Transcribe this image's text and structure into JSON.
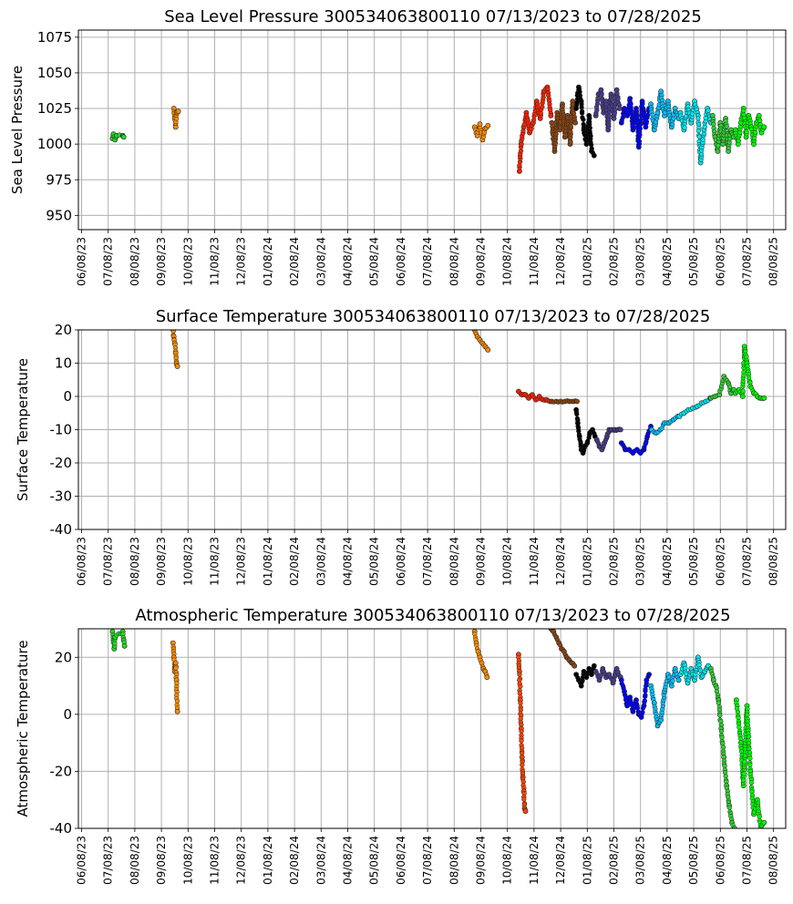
{
  "chart_data": [
    {
      "type": "scatter",
      "title": "Sea Level Pressure 300534063800110  07/13/2023 to 07/28/2025",
      "ylabel": "Sea Level Pressure",
      "xlabel": "",
      "ylim": [
        940,
        1080
      ],
      "yticks": [
        950,
        975,
        1000,
        1025,
        1050,
        1075
      ],
      "grid": true,
      "x_ticks": [
        "06/08/23",
        "07/08/23",
        "08/08/23",
        "09/08/23",
        "10/08/23",
        "11/08/23",
        "12/08/23",
        "01/08/24",
        "02/08/24",
        "03/08/24",
        "04/08/24",
        "05/08/24",
        "06/08/24",
        "07/08/24",
        "08/08/24",
        "09/08/24",
        "10/08/24",
        "11/08/24",
        "12/08/24",
        "01/08/25",
        "02/08/25",
        "03/08/25",
        "04/08/25",
        "05/08/25",
        "06/08/25",
        "07/08/25",
        "08/08/25"
      ],
      "series": [
        {
          "color": "#22dd22",
          "x": [
            "07/13/23",
            "07/14/23",
            "07/16/23",
            "07/18/23",
            "07/25/23",
            "07/26/23"
          ],
          "y": [
            1004,
            1007,
            1003,
            1006,
            1006,
            1005
          ]
        },
        {
          "color": "#ff8c00",
          "x": [
            "09/22/23",
            "09/23/23",
            "09/24/23",
            "09/25/23",
            "09/27/23"
          ],
          "y": [
            1025,
            1018,
            1012,
            1022,
            1023
          ]
        },
        {
          "color": "#ff8c00",
          "x": [
            "09/01/24",
            "09/04/24",
            "09/07/24",
            "09/10/24",
            "09/13/24",
            "09/16/24"
          ],
          "y": [
            1012,
            1006,
            1014,
            1003,
            1011,
            1013
          ]
        },
        {
          "color": "#ff2200",
          "x": [
            "10/22/24",
            "10/24/24",
            "10/27/24",
            "10/30/24",
            "11/03/24",
            "11/07/24",
            "11/11/24",
            "11/15/24",
            "11/19/24",
            "11/23/24",
            "11/27/24"
          ],
          "y": [
            981,
            1000,
            1012,
            1022,
            1008,
            1015,
            1030,
            1018,
            1037,
            1040,
            1020
          ]
        },
        {
          "color": "#8b4513",
          "x": [
            "11/28/24",
            "12/01/24",
            "12/04/24",
            "12/07/24",
            "12/10/24",
            "12/13/24",
            "12/16/24",
            "12/19/24",
            "12/22/24",
            "12/25/24"
          ],
          "y": [
            1015,
            995,
            1022,
            1010,
            1028,
            1005,
            1020,
            1000,
            1030,
            1015
          ]
        },
        {
          "color": "#000000",
          "x": [
            "12/26/24",
            "12/29/24",
            "01/01/25",
            "01/04/25",
            "01/07/25",
            "01/10/25",
            "01/13/25",
            "01/16/25"
          ],
          "y": [
            1025,
            1040,
            1030,
            1010,
            1000,
            1020,
            995,
            992
          ]
        },
        {
          "color": "#483d8b",
          "x": [
            "01/18/25",
            "01/21/25",
            "01/24/25",
            "01/27/25",
            "01/30/25",
            "02/02/25",
            "02/05/25",
            "02/08/25",
            "02/11/25",
            "02/14/25"
          ],
          "y": [
            1020,
            1035,
            1038,
            1022,
            1030,
            1010,
            1035,
            1018,
            1038,
            1025
          ]
        },
        {
          "color": "#0000ff",
          "x": [
            "02/16/25",
            "02/19/25",
            "02/22/25",
            "02/25/25",
            "02/28/25",
            "03/03/25",
            "03/06/25",
            "03/10/25",
            "03/14/25",
            "03/18/25"
          ],
          "y": [
            1015,
            1025,
            1020,
            1032,
            1010,
            1025,
            998,
            1030,
            1012,
            1025
          ]
        },
        {
          "color": "#00bfff",
          "x": [
            "03/20/25",
            "03/24/25",
            "03/28/25",
            "04/01/25",
            "04/05/25",
            "04/09/25",
            "04/13/25",
            "04/17/25",
            "04/21/25"
          ],
          "y": [
            1028,
            1010,
            1022,
            1037,
            1020,
            1030,
            1012,
            1025,
            1018
          ]
        },
        {
          "color": "#00e5ee",
          "x": [
            "04/23/25",
            "04/27/25",
            "05/01/25",
            "05/05/25",
            "05/09/25",
            "05/13/25",
            "05/16/25",
            "05/20/25",
            "05/24/25",
            "05/28/25"
          ],
          "y": [
            1022,
            1010,
            1028,
            1015,
            1030,
            1020,
            987,
            1010,
            1025,
            1015
          ]
        },
        {
          "color": "#32cd32",
          "x": [
            "05/30/25",
            "06/02/25",
            "06/05/25",
            "06/08/25",
            "06/11/25",
            "06/14/25",
            "06/17/25",
            "06/20/25",
            "06/23/25"
          ],
          "y": [
            1020,
            1005,
            995,
            1015,
            1000,
            1018,
            995,
            1010,
            1005
          ]
        },
        {
          "color": "#00ff00",
          "x": [
            "06/25/25",
            "06/28/25",
            "07/01/25",
            "07/04/25",
            "07/07/25",
            "07/10/25",
            "07/13/25",
            "07/16/25",
            "07/19/25",
            "07/22/25",
            "07/25/25",
            "07/28/25"
          ],
          "y": [
            1010,
            1000,
            1015,
            1025,
            1005,
            1020,
            1012,
            1000,
            1015,
            1020,
            1008,
            1012
          ]
        }
      ]
    },
    {
      "type": "scatter",
      "title": "Surface Temperature 300534063800110  07/13/2023 to 07/28/2025",
      "ylabel": "Surface Temperature",
      "xlabel": "",
      "ylim": [
        -40,
        20
      ],
      "yticks": [
        -40,
        -30,
        -20,
        -10,
        0,
        10,
        20
      ],
      "grid": true,
      "x_ticks": [
        "06/08/23",
        "07/08/23",
        "08/08/23",
        "09/08/23",
        "10/08/23",
        "11/08/23",
        "12/08/23",
        "01/08/24",
        "02/08/24",
        "03/08/24",
        "04/08/24",
        "05/08/24",
        "06/08/24",
        "07/08/24",
        "08/08/24",
        "09/08/24",
        "10/08/24",
        "11/08/24",
        "12/08/24",
        "01/08/25",
        "02/08/25",
        "03/08/25",
        "04/08/25",
        "05/08/25",
        "06/08/25",
        "07/08/25",
        "08/08/25"
      ],
      "series": [
        {
          "color": "#ff8c00",
          "x": [
            "09/21/23",
            "09/22/23",
            "09/23/23",
            "09/24/23",
            "09/25/23",
            "09/26/23"
          ],
          "y": [
            20,
            18,
            16,
            13,
            10,
            9
          ]
        },
        {
          "color": "#ff8c00",
          "x": [
            "09/01/24",
            "09/04/24",
            "09/07/24",
            "09/10/24",
            "09/13/24",
            "09/16/24"
          ],
          "y": [
            20,
            18,
            17,
            16,
            15,
            14
          ]
        },
        {
          "color": "#ff2200",
          "x": [
            "10/21/24",
            "10/25/24",
            "10/29/24",
            "11/02/24",
            "11/06/24",
            "11/10/24",
            "11/14/24",
            "11/18/24",
            "11/22/24",
            "11/26/24"
          ],
          "y": [
            1.5,
            0.5,
            0.5,
            -0.5,
            0.5,
            -1,
            0,
            -1,
            -1,
            -1.5
          ]
        },
        {
          "color": "#8b4513",
          "x": [
            "11/28/24",
            "12/03/24",
            "12/08/24",
            "12/13/24",
            "12/18/24",
            "12/23/24",
            "12/27/24"
          ],
          "y": [
            -1.5,
            -1.5,
            -1.5,
            -1.5,
            -1.5,
            -1.5,
            -1.5
          ]
        },
        {
          "color": "#000000",
          "x": [
            "12/26/24",
            "12/28/24",
            "12/30/24",
            "01/01/25",
            "01/03/25",
            "01/05/25",
            "01/08/25",
            "01/11/25",
            "01/14/25",
            "01/17/25"
          ],
          "y": [
            -4,
            -8,
            -12,
            -16,
            -17,
            -15,
            -14,
            -11,
            -10,
            -12
          ]
        },
        {
          "color": "#483d8b",
          "x": [
            "01/19/25",
            "01/22/25",
            "01/25/25",
            "01/28/25",
            "01/31/25",
            "02/03/25",
            "02/06/25",
            "02/09/25",
            "02/12/25",
            "02/15/25"
          ],
          "y": [
            -13,
            -15,
            -16,
            -14,
            -12,
            -10,
            -10,
            -10,
            -10,
            -10
          ]
        },
        {
          "color": "#0000ff",
          "x": [
            "02/16/25",
            "02/20/25",
            "02/24/25",
            "02/28/25",
            "03/04/25",
            "03/08/25",
            "03/12/25",
            "03/16/25",
            "03/20/25"
          ],
          "y": [
            -14,
            -16,
            -16,
            -17,
            -16,
            -17,
            -16,
            -12,
            -9
          ]
        },
        {
          "color": "#00bfff",
          "x": [
            "03/21/25",
            "03/26/25",
            "03/31/25",
            "04/05/25",
            "04/10/25",
            "04/15/25",
            "04/20/25"
          ],
          "y": [
            -10,
            -11,
            -10,
            -8,
            -8,
            -7,
            -6
          ]
        },
        {
          "color": "#00e5ee",
          "x": [
            "04/22/25",
            "04/27/25",
            "05/02/25",
            "05/07/25",
            "05/12/25",
            "05/17/25",
            "05/22/25",
            "05/27/25"
          ],
          "y": [
            -6,
            -5,
            -4,
            -3.5,
            -3,
            -2,
            -1.5,
            -0.5
          ]
        },
        {
          "color": "#32cd32",
          "x": [
            "05/28/25",
            "06/02/25",
            "06/07/25",
            "06/12/25",
            "06/17/25",
            "06/20/25",
            "06/23/25"
          ],
          "y": [
            -0.5,
            0,
            0.5,
            6,
            4,
            1,
            2
          ]
        },
        {
          "color": "#00ff00",
          "x": [
            "06/25/25",
            "06/29/25",
            "07/03/25",
            "07/05/25",
            "07/08/25",
            "07/12/25",
            "07/16/25",
            "07/20/25",
            "07/24/25",
            "07/28/25"
          ],
          "y": [
            1,
            2,
            0,
            15,
            10,
            3,
            1,
            0,
            -0.5,
            -0.5
          ]
        }
      ]
    },
    {
      "type": "scatter",
      "title": "Atmospheric Temperature 300534063800110  07/13/2023 to 07/28/2025",
      "ylabel": "Atmospheric Temperature",
      "xlabel": "",
      "ylim": [
        -40,
        30
      ],
      "yticks": [
        -40,
        -20,
        0,
        20
      ],
      "grid": true,
      "x_ticks": [
        "06/08/23",
        "07/08/23",
        "08/08/23",
        "09/08/23",
        "10/08/23",
        "11/08/23",
        "12/08/23",
        "01/08/24",
        "02/08/24",
        "03/08/24",
        "04/08/24",
        "05/08/24",
        "06/08/24",
        "07/08/24",
        "08/08/24",
        "09/08/24",
        "10/08/24",
        "11/08/24",
        "12/08/24",
        "01/08/25",
        "02/08/25",
        "03/08/25",
        "04/08/25",
        "05/08/25",
        "06/08/25",
        "07/08/25",
        "08/08/25"
      ],
      "series": [
        {
          "color": "#22dd22",
          "x": [
            "07/13/23",
            "07/14/23",
            "07/15/23",
            "07/16/23",
            "07/25/23",
            "07/26/23",
            "07/27/23"
          ],
          "y": [
            29,
            26,
            23,
            27,
            29,
            26,
            24
          ]
        },
        {
          "color": "#ff8c00",
          "x": [
            "09/21/23",
            "09/22/23",
            "09/23/23",
            "09/24/23",
            "09/25/23",
            "09/26/23"
          ],
          "y": [
            25,
            20,
            15,
            18,
            12,
            1
          ]
        },
        {
          "color": "#ff8c00",
          "x": [
            "09/01/24",
            "09/03/24",
            "09/05/24",
            "09/07/24",
            "09/09/24",
            "09/11/24",
            "09/13/24",
            "09/15/24"
          ],
          "y": [
            29,
            25,
            22,
            20,
            18,
            16,
            15,
            13
          ]
        },
        {
          "color": "#ff4500",
          "x": [
            "10/21/24",
            "10/22/24",
            "10/23/24",
            "10/24/24",
            "10/25/24",
            "10/26/24",
            "10/27/24",
            "10/28/24",
            "10/29/24"
          ],
          "y": [
            21,
            15,
            5,
            -5,
            -15,
            -22,
            -27,
            -33,
            -34
          ]
        },
        {
          "color": "#8b4513",
          "x": [
            "11/27/24",
            "11/30/24",
            "12/03/24",
            "12/06/24",
            "12/09/24",
            "12/12/24",
            "12/15/24",
            "12/18/24",
            "12/21/24",
            "12/24/24"
          ],
          "y": [
            30,
            29,
            27,
            25,
            23,
            22,
            20,
            19,
            18,
            17
          ]
        },
        {
          "color": "#000000",
          "x": [
            "12/26/24",
            "12/29/24",
            "01/01/25",
            "01/04/25",
            "01/07/25",
            "01/10/25",
            "01/13/25",
            "01/16/25"
          ],
          "y": [
            14,
            12,
            10,
            15,
            13,
            16,
            14,
            17
          ]
        },
        {
          "color": "#483d8b",
          "x": [
            "01/18/25",
            "01/22/25",
            "01/26/25",
            "01/30/25",
            "02/03/25",
            "02/07/25",
            "02/11/25",
            "02/15/25"
          ],
          "y": [
            15,
            12,
            16,
            13,
            14,
            11,
            16,
            13
          ]
        },
        {
          "color": "#0000ff",
          "x": [
            "02/16/25",
            "02/19/25",
            "02/22/25",
            "02/25/25",
            "02/28/25",
            "03/03/25",
            "03/06/25",
            "03/09/25",
            "03/12/25",
            "03/15/25",
            "03/18/25"
          ],
          "y": [
            12,
            8,
            3,
            6,
            1,
            5,
            0,
            -1,
            3,
            12,
            14
          ]
        },
        {
          "color": "#00bfff",
          "x": [
            "03/20/25",
            "03/24/25",
            "03/28/25",
            "04/01/25",
            "04/05/25",
            "04/09/25",
            "04/13/25",
            "04/17/25",
            "04/21/25"
          ],
          "y": [
            10,
            4,
            -4,
            -2,
            8,
            14,
            10,
            16,
            12
          ]
        },
        {
          "color": "#00e5ee",
          "x": [
            "04/23/25",
            "04/27/25",
            "05/01/25",
            "05/05/25",
            "05/09/25",
            "05/13/25",
            "05/17/25",
            "05/21/25",
            "05/25/25"
          ],
          "y": [
            14,
            18,
            11,
            16,
            12,
            20,
            13,
            15,
            17
          ]
        },
        {
          "color": "#32cd32",
          "x": [
            "05/28/25",
            "05/31/25",
            "06/03/25",
            "06/06/25",
            "06/09/25",
            "06/12/25",
            "06/15/25",
            "06/18/25",
            "06/21/25",
            "06/24/25"
          ],
          "y": [
            16,
            12,
            10,
            5,
            -5,
            -15,
            -25,
            -32,
            -38,
            -40
          ]
        },
        {
          "color": "#00ff00",
          "x": [
            "06/26/25",
            "07/01/25",
            "07/04/25",
            "07/08/25",
            "07/12/25",
            "07/16/25",
            "07/20/25",
            "07/24/25",
            "07/28/25"
          ],
          "y": [
            5,
            -10,
            -25,
            3,
            -20,
            -35,
            -30,
            -40,
            -38
          ]
        }
      ]
    }
  ]
}
